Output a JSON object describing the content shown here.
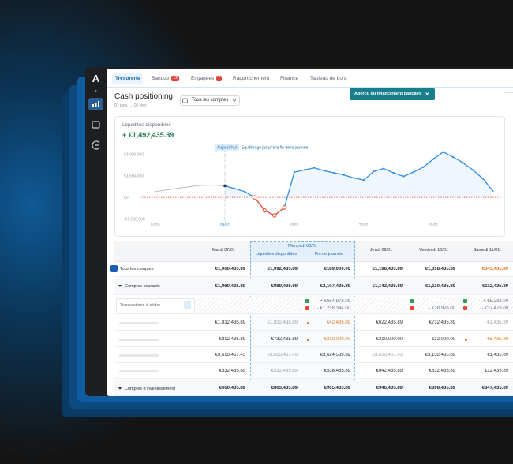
{
  "sidebar": {
    "logo": "A"
  },
  "nav": {
    "tabs": [
      {
        "label": "Trésorerie",
        "active": true
      },
      {
        "label": "Banque",
        "badge": 12
      },
      {
        "label": "Engagées",
        "badge": 7
      },
      {
        "label": "Rapprochement"
      },
      {
        "label": "Finance"
      },
      {
        "label": "Tableau de bord"
      }
    ]
  },
  "header": {
    "title": "Cash positioning",
    "subtitle": "01 janv. → 05 févr.",
    "account_filter": "Tous les comptes"
  },
  "banner": {
    "text": "Aperçu du financement bancaire"
  },
  "chart_data": {
    "type": "line",
    "title": "Liquidités disponibles",
    "subtitle": "+ €1,492,435.89",
    "annotations": [
      "Aujourd'hui",
      "Equilibrage jusqu'à la fin de la journée"
    ],
    "categories": [
      "01/01",
      null,
      null,
      null,
      null,
      null,
      null,
      "08/01",
      null,
      null,
      null,
      null,
      null,
      null,
      "15/01",
      null,
      null,
      null,
      null,
      null,
      null,
      "22/01",
      null,
      null,
      null,
      null,
      null,
      null,
      "29/01",
      null,
      null,
      null,
      null,
      null,
      null
    ],
    "series": [
      {
        "color": "#b7bcc4",
        "values": [
          400000,
          500000,
          600000,
          700000,
          800000,
          850000,
          850000,
          800000,
          null,
          null,
          null,
          null,
          null,
          null,
          null,
          null,
          null,
          null,
          null,
          null,
          null,
          null,
          null,
          null,
          null,
          null,
          null,
          null,
          null,
          null,
          null,
          null,
          null,
          null,
          null
        ]
      },
      {
        "color": "#2f8fe0",
        "values": [
          null,
          null,
          null,
          null,
          null,
          null,
          null,
          800000,
          600000,
          400000,
          0,
          null,
          null,
          -700000,
          1750000,
          1900000,
          2050000,
          1850000,
          1700000,
          1550000,
          1350000,
          1200000,
          1800000,
          2000000,
          1700000,
          1450000,
          1750000,
          2100000,
          2650000,
          3150000,
          2800000,
          2400000,
          1900000,
          1300000,
          450000
        ]
      },
      {
        "color": "#e0482f",
        "values": [
          null,
          null,
          null,
          null,
          null,
          null,
          null,
          null,
          null,
          null,
          0,
          -900000,
          -1250000,
          -700000,
          null,
          null,
          null,
          null,
          null,
          null,
          null,
          null,
          null,
          null,
          null,
          null,
          null,
          null,
          null,
          null,
          null,
          null,
          null,
          null,
          null
        ]
      }
    ],
    "ylim": [
      -1800000,
      3400000
    ],
    "yticks": [
      {
        "value": 3000000,
        "label": "€3,000,000"
      },
      {
        "value": 1500000,
        "label": "€1,500,000"
      },
      {
        "value": 0,
        "label": "€0"
      },
      {
        "value": -1500000,
        "label": "-€1,500,000"
      }
    ],
    "grid": false
  },
  "table": {
    "columns": [
      "Mardi 07/01",
      "Mercredi 08/01",
      "Jeudi 09/01",
      "Vendredi 10/01",
      "Samedi 11/01"
    ],
    "subcolumns": [
      "Liquidités disponibles",
      "Fin de journée"
    ],
    "rows": [
      {
        "kind": "total",
        "label": "Tous les comptes",
        "cells": [
          "€1,060,435.89",
          "€1,092,435.89",
          "€189,000.00",
          "€1,198,435.89",
          "€1,318,435.89",
          {
            "text": "€843,435.89",
            "tone": "warning"
          }
        ]
      },
      {
        "kind": "section",
        "label": "Comptes courants",
        "cells": [
          "€1,060,435.89",
          "€989,435.89",
          "€2,107,435.89",
          "€1,142,435.89",
          "€1,110,435.89",
          "€112,435.89"
        ]
      },
      {
        "kind": "transactions",
        "label": "Transactions à céder",
        "cells": [
          null,
          null,
          {
            "in": "+ €654,878.09",
            "out": "- €1,218 344.00"
          },
          null,
          {
            "in": "—",
            "out": "- €28,978.00"
          },
          {
            "in": "+ €5,232.00",
            "out": "- €37,478.00"
          }
        ]
      },
      {
        "kind": "account",
        "cells": [
          "€1,832,435.89",
          {
            "text": "€1,832,435.89",
            "tone": "muted"
          },
          {
            "text": "€42,435.89",
            "tone": "warning",
            "dot": true
          },
          "€622,435.89",
          "€732,435.89",
          {
            "text": "€1,435.89",
            "tone": "muted"
          }
        ]
      },
      {
        "kind": "account",
        "cells": [
          "€812,435.89",
          "€732,435.89",
          {
            "text": "€310,000.00",
            "tone": "warning",
            "dot": true
          },
          "€310,000.00",
          "€32,000.00",
          {
            "text": "€5,435.89",
            "tone": "warning",
            "dot": true
          }
        ]
      },
      {
        "kind": "account",
        "cells": [
          "€3,613,467.43",
          {
            "text": "€3,613,467.43",
            "tone": "muted"
          },
          "€3,624,589.32",
          {
            "text": "€3,613,467.43",
            "tone": "muted"
          },
          "€3,132,435.89",
          "€1,435.89"
        ]
      },
      {
        "kind": "account",
        "cells": [
          "€532,435.89",
          {
            "text": "€532,435.89",
            "tone": "muted"
          },
          "€538,435.89",
          "€642,435.89",
          "€532,435.89",
          "€12,435.89"
        ]
      },
      {
        "kind": "section",
        "label": "Comptes d'investissement",
        "cells": [
          "€660,435.89",
          "€803,435.89",
          "€905,435.89",
          "€946,435.89",
          "€898,435.89",
          "€847,435.89"
        ]
      }
    ]
  }
}
